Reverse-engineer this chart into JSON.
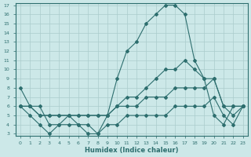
{
  "x_vals": [
    0,
    1,
    2,
    3,
    4,
    5,
    6,
    7,
    8,
    9,
    10,
    11,
    12,
    13,
    14,
    15,
    16,
    17,
    18,
    19,
    20,
    21,
    22,
    23
  ],
  "line_peak": [
    8,
    6,
    6,
    4,
    4,
    5,
    4,
    4,
    3,
    5,
    9,
    12,
    13,
    15,
    16,
    17,
    17,
    16,
    11,
    9,
    5,
    4,
    6,
    6
  ],
  "line_upper": [
    6,
    6,
    5,
    5,
    5,
    5,
    5,
    5,
    5,
    5,
    6,
    7,
    7,
    8,
    9,
    10,
    10,
    11,
    10,
    9,
    9,
    6,
    6,
    6
  ],
  "line_mid": [
    6,
    6,
    5,
    5,
    5,
    5,
    5,
    5,
    5,
    5,
    6,
    6,
    6,
    7,
    7,
    7,
    8,
    8,
    8,
    8,
    9,
    6,
    5,
    6
  ],
  "line_low": [
    6,
    5,
    4,
    3,
    4,
    4,
    4,
    3,
    3,
    4,
    4,
    5,
    5,
    5,
    5,
    5,
    6,
    6,
    6,
    6,
    7,
    5,
    4,
    6
  ],
  "color": "#2d6e6e",
  "bg_color": "#cce8e8",
  "grid_color": "#aacccc",
  "xlabel": "Humidex (Indice chaleur)",
  "ylim": [
    3,
    17
  ],
  "xlim": [
    -0.5,
    23.5
  ],
  "yticks": [
    3,
    4,
    5,
    6,
    7,
    8,
    9,
    10,
    11,
    12,
    13,
    14,
    15,
    16,
    17
  ],
  "xticks": [
    0,
    1,
    2,
    3,
    4,
    5,
    6,
    7,
    8,
    9,
    10,
    11,
    12,
    13,
    14,
    15,
    16,
    17,
    18,
    19,
    20,
    21,
    22,
    23
  ]
}
